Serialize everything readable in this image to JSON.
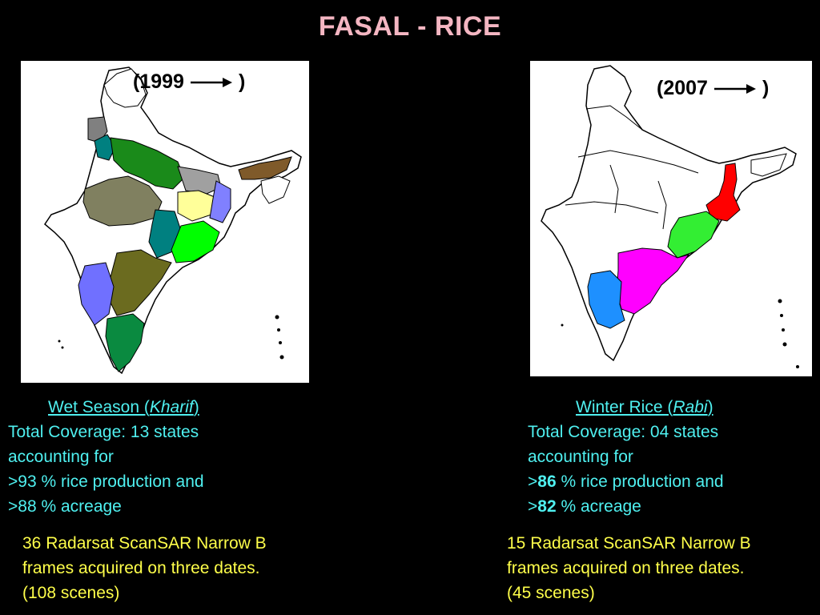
{
  "title": "FASAL - RICE",
  "left": {
    "year": "(1999",
    "year_close": ")",
    "season_label": "Wet Season (",
    "season_italic": "Kharif",
    "season_close": ")",
    "coverage": "Total Coverage: 13 states",
    "accounting": "accounting for",
    "prod_prefix": ">",
    "prod_value": "93",
    "prod_suffix": " % rice production and",
    "area_prefix": ">",
    "area_value": "88",
    "area_suffix": " % acreage",
    "frames_1": "36 Radarsat ScanSAR Narrow B",
    "frames_2": "frames acquired on three dates.",
    "frames_3": "(108 scenes)"
  },
  "right": {
    "year": "(2007",
    "year_close": ")",
    "season_label": "Winter Rice (",
    "season_italic": "Rabi",
    "season_close": ")",
    "coverage": "Total Coverage: 04 states",
    "accounting": "accounting for",
    "prod_prefix": ">",
    "prod_value": "86",
    "prod_suffix": " % rice production and",
    "area_prefix": ">",
    "area_value": "82",
    "area_suffix": " % acreage",
    "frames_1": "15 Radarsat ScanSAR Narrow B",
    "frames_2": "frames acquired on three dates.",
    "frames_3": "(45 scenes)"
  },
  "colors": {
    "background": "#000000",
    "title": "#f4b6c2",
    "caption": "#4ff0f0",
    "frames_text": "#ffff4a",
    "kharif_states": [
      "#808080",
      "#008080",
      "#1a8a1a",
      "#808060",
      "#a0a0a0",
      "#ffff99",
      "#8080ff",
      "#00ff00",
      "#6b6b1f",
      "#7f5a2a",
      "#7070ff",
      "#0a8a40"
    ],
    "rabi_states": [
      "#ff0000",
      "#33ee33",
      "#ff00ff",
      "#1e90ff"
    ]
  }
}
